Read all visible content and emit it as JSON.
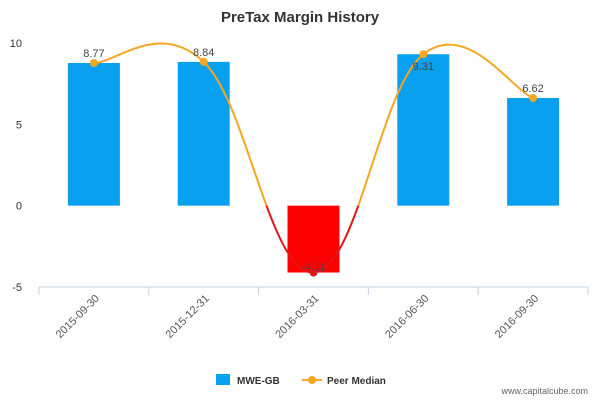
{
  "chart_data": {
    "type": "bar",
    "title": "PreTax Margin History",
    "categories": [
      "2015-09-30",
      "2015-12-31",
      "2016-03-31",
      "2016-06-30",
      "2016-09-30"
    ],
    "series": [
      {
        "name": "MWE-GB",
        "kind": "bar",
        "values": [
          8.77,
          8.84,
          -4.11,
          9.31,
          6.62
        ],
        "color": "#0aa0f0",
        "negative_color": "#ff0000"
      },
      {
        "name": "Peer Median",
        "kind": "line",
        "values": [
          8.77,
          8.84,
          -4.11,
          9.31,
          6.62
        ],
        "color": "#f5a623",
        "negative_color": "#e0161b"
      }
    ],
    "data_labels": [
      "8.77",
      "8.84",
      "-4.11",
      "9.31",
      "6.62"
    ],
    "ylim": [
      -5,
      10
    ],
    "yticks": [
      "-5",
      "0",
      "5",
      "10"
    ],
    "xlabel": "",
    "ylabel": "",
    "grid": false,
    "legend": "bottom-center"
  },
  "watermark": "www.capitalcube.com"
}
